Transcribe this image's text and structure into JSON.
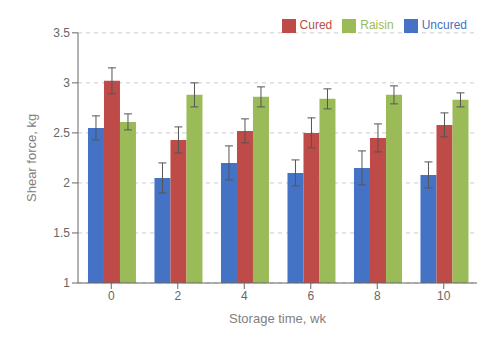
{
  "chart_data": {
    "type": "bar",
    "x_label": "Storage time, wk",
    "y_label": "Shear force, kg",
    "categories": [
      "0",
      "2",
      "4",
      "6",
      "8",
      "10"
    ],
    "series": [
      {
        "name": "Uncured",
        "color": "#4472C4",
        "values": [
          2.55,
          2.05,
          2.2,
          2.1,
          2.15,
          2.08
        ],
        "errors": [
          0.12,
          0.15,
          0.17,
          0.13,
          0.17,
          0.13
        ]
      },
      {
        "name": "Cured",
        "color": "#BE4B48",
        "values": [
          3.02,
          2.43,
          2.52,
          2.5,
          2.45,
          2.58
        ],
        "errors": [
          0.13,
          0.13,
          0.12,
          0.15,
          0.14,
          0.12
        ]
      },
      {
        "name": "Raisin",
        "color": "#9BBB59",
        "values": [
          2.61,
          2.88,
          2.86,
          2.84,
          2.88,
          2.83
        ],
        "errors": [
          0.08,
          0.12,
          0.1,
          0.1,
          0.09,
          0.07
        ]
      }
    ],
    "ylim": [
      1.0,
      3.5
    ],
    "yticks": [
      1.0,
      1.5,
      2.0,
      2.5,
      3.0,
      3.5
    ],
    "grid": true,
    "legend": "upper right"
  }
}
